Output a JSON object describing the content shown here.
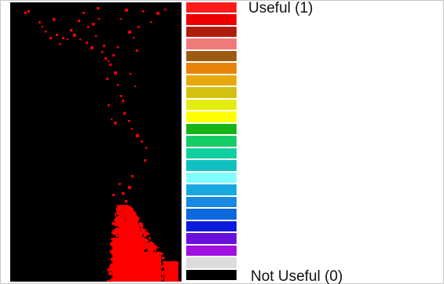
{
  "legend": {
    "top_label": "Useful (1)",
    "bottom_label": "Not Useful (0)",
    "swatches": [
      "#ff1a1a",
      "#ee0000",
      "#b01c0c",
      "#f07a7a",
      "#9c5a12",
      "#e8840a",
      "#e8a80a",
      "#d4c010",
      "#e4ec10",
      "#ffff00",
      "#16b416",
      "#16cc66",
      "#10d0a0",
      "#10c0c0",
      "#80ffff",
      "#18a8e0",
      "#1888e0",
      "#0c68dc",
      "#0c1cdc",
      "#6a10dc",
      "#a010e0",
      "#dcdcdc",
      "#000000"
    ]
  },
  "map": {
    "background": "#000000",
    "useful_color": "#ff0000"
  }
}
